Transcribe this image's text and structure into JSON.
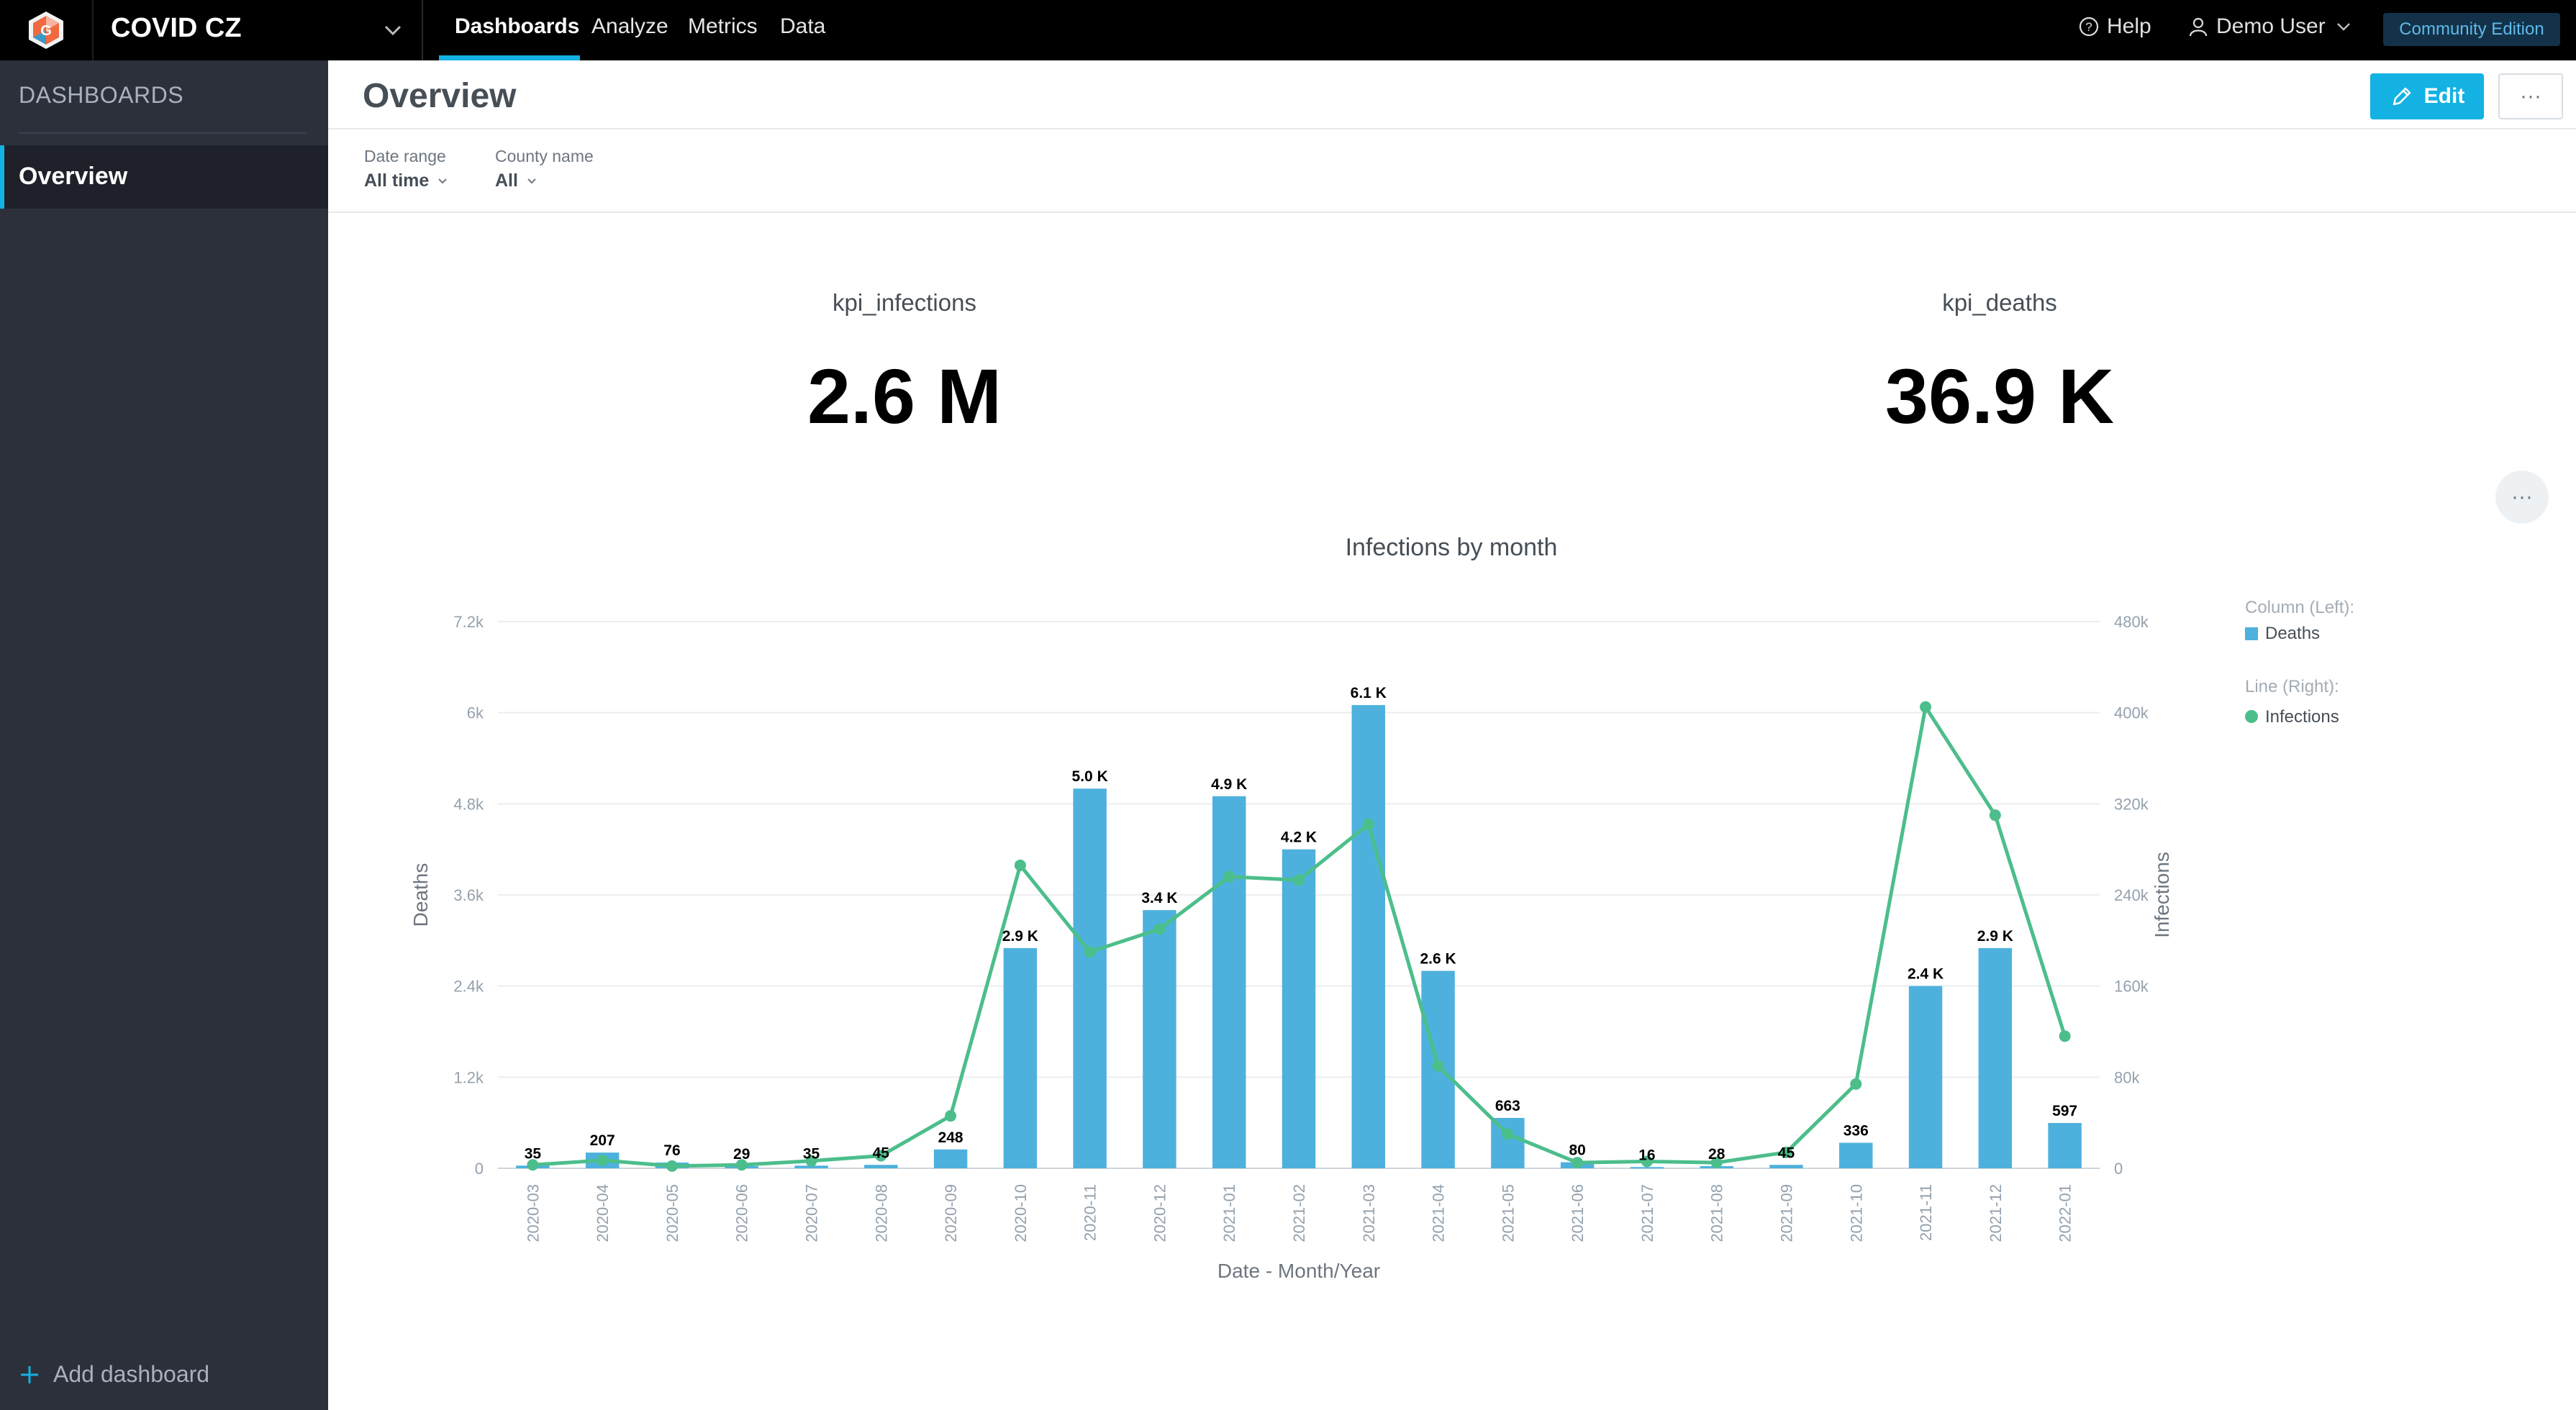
{
  "header": {
    "workspace": "COVID CZ",
    "nav": [
      "Dashboards",
      "Analyze",
      "Metrics",
      "Data"
    ],
    "help": "Help",
    "user": "Demo User",
    "edition": "Community Edition",
    "colors": {
      "accent": "#14b2e2",
      "topbar": "#000000"
    }
  },
  "sidebar": {
    "title": "DASHBOARDS",
    "items": [
      {
        "label": "Overview"
      }
    ],
    "add_label": "Add dashboard"
  },
  "main": {
    "title": "Overview",
    "edit_label": "Edit",
    "more_label": "···",
    "filters": [
      {
        "label": "Date range",
        "value": "All time"
      },
      {
        "label": "County name",
        "value": "All"
      }
    ],
    "kpis": [
      {
        "title": "kpi_infections",
        "value": "2.6 M"
      },
      {
        "title": "kpi_deaths",
        "value": "36.9 K"
      }
    ]
  },
  "chart_data": {
    "type": "bar+line",
    "title": "Infections by month",
    "xlabel": "Date - Month/Year",
    "ylabel_left": "Deaths",
    "ylabel_right": "Infections",
    "categories": [
      "2020-03",
      "2020-04",
      "2020-05",
      "2020-06",
      "2020-07",
      "2020-08",
      "2020-09",
      "2020-10",
      "2020-11",
      "2020-12",
      "2021-01",
      "2021-02",
      "2021-03",
      "2021-04",
      "2021-05",
      "2021-06",
      "2021-07",
      "2021-08",
      "2021-09",
      "2021-10",
      "2021-11",
      "2021-12",
      "2022-01"
    ],
    "ylim_left": [
      0,
      7200
    ],
    "yticks_left": [
      "0",
      "1.2k",
      "2.4k",
      "3.6k",
      "4.8k",
      "6k",
      "7.2k"
    ],
    "ylim_right": [
      0,
      480000
    ],
    "yticks_right": [
      "0",
      "80k",
      "160k",
      "240k",
      "320k",
      "400k",
      "480k"
    ],
    "legend": {
      "placement": "right",
      "column_header": "Column (Left):",
      "line_header": "Line (Right):"
    },
    "series": [
      {
        "name": "Deaths",
        "type": "bar",
        "axis": "left",
        "color": "#4eb1dd",
        "values": [
          35,
          207,
          76,
          29,
          35,
          45,
          248,
          2900,
          5000,
          3400,
          4900,
          4200,
          6100,
          2600,
          663,
          80,
          16,
          28,
          45,
          336,
          2400,
          2900,
          597
        ],
        "labels": [
          "35",
          "207",
          "76",
          "29",
          "35",
          "45",
          "248",
          "2.9 K",
          "5.0 K",
          "3.4 K",
          "4.9 K",
          "4.2 K",
          "6.1 K",
          "2.6 K",
          "663",
          "80",
          "16",
          "28",
          "45",
          "336",
          "2.4 K",
          "2.9 K",
          "597"
        ]
      },
      {
        "name": "Infections",
        "type": "line",
        "axis": "right",
        "color": "#4cbe8b",
        "values": [
          3000,
          7000,
          2000,
          3000,
          6500,
          11000,
          46000,
          266000,
          190000,
          210000,
          256000,
          253000,
          302000,
          90000,
          30000,
          5000,
          6000,
          5000,
          14000,
          74000,
          405000,
          310000,
          116000
        ]
      }
    ]
  }
}
